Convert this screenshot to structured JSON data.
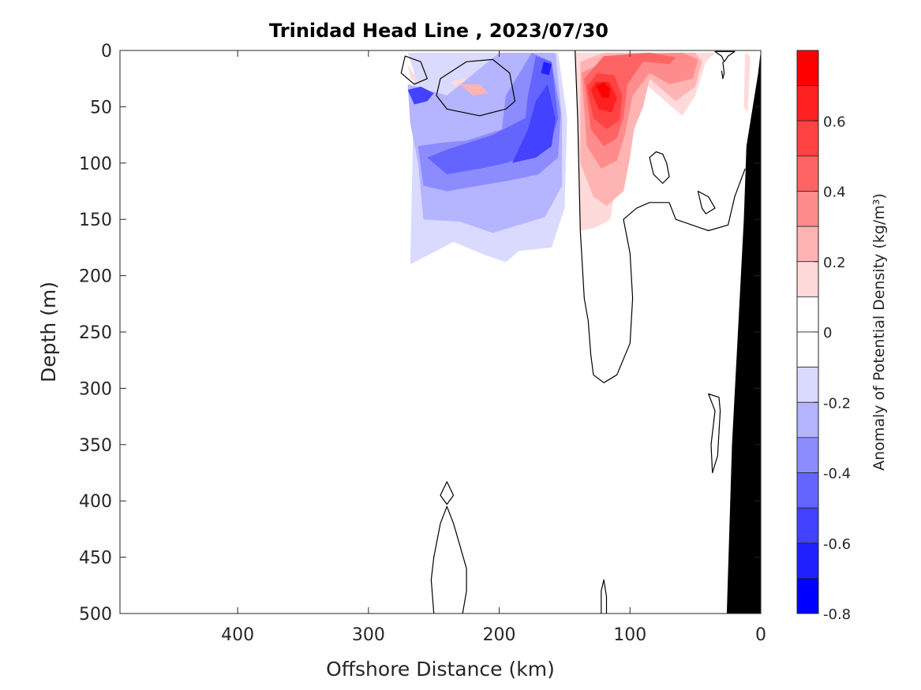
{
  "chart_data": {
    "type": "heatmap",
    "title": "Trinidad Head Line , 2023/07/30",
    "xlabel": "Offshore Distance (km)",
    "ylabel": "Depth (m)",
    "xlim": [
      490,
      0
    ],
    "ylim": [
      0,
      500
    ],
    "x_ticks": [
      {
        "value": 400,
        "label": "400"
      },
      {
        "value": 300,
        "label": "300"
      },
      {
        "value": 200,
        "label": "200"
      },
      {
        "value": 100,
        "label": "100"
      },
      {
        "value": 0,
        "label": "0"
      }
    ],
    "y_ticks": [
      {
        "value": 0,
        "label": "0"
      },
      {
        "value": 50,
        "label": "50"
      },
      {
        "value": 100,
        "label": "100"
      },
      {
        "value": 150,
        "label": "150"
      },
      {
        "value": 200,
        "label": "200"
      },
      {
        "value": 250,
        "label": "250"
      },
      {
        "value": 300,
        "label": "300"
      },
      {
        "value": 350,
        "label": "350"
      },
      {
        "value": 400,
        "label": "400"
      },
      {
        "value": 450,
        "label": "450"
      },
      {
        "value": 500,
        "label": "500"
      }
    ],
    "colorbar": {
      "label": "Anomaly of Potential Density (kg/m³)",
      "clim": [
        -0.8,
        0.8
      ],
      "ticks": [
        {
          "value": 0.6,
          "label": "0.6"
        },
        {
          "value": 0.4,
          "label": "0.4"
        },
        {
          "value": 0.2,
          "label": "0.2"
        },
        {
          "value": 0,
          "label": "0"
        },
        {
          "value": -0.2,
          "label": "-0.2"
        },
        {
          "value": -0.4,
          "label": "-0.4"
        },
        {
          "value": -0.6,
          "label": "-0.6"
        },
        {
          "value": -0.8,
          "label": "-0.8"
        }
      ],
      "levels": [
        {
          "from": 0.7,
          "to": 0.8,
          "color": "#ff0000"
        },
        {
          "from": 0.6,
          "to": 0.7,
          "color": "#ff2020"
        },
        {
          "from": 0.5,
          "to": 0.6,
          "color": "#ff4242"
        },
        {
          "from": 0.4,
          "to": 0.5,
          "color": "#ff6464"
        },
        {
          "from": 0.3,
          "to": 0.4,
          "color": "#ff8c8c"
        },
        {
          "from": 0.2,
          "to": 0.3,
          "color": "#ffb4b4"
        },
        {
          "from": 0.1,
          "to": 0.2,
          "color": "#ffdada"
        },
        {
          "from": 0.0,
          "to": 0.1,
          "color": "#ffffff"
        },
        {
          "from": -0.1,
          "to": 0.0,
          "color": "#ffffff"
        },
        {
          "from": -0.2,
          "to": -0.1,
          "color": "#dadaff"
        },
        {
          "from": -0.3,
          "to": -0.2,
          "color": "#b4b4ff"
        },
        {
          "from": -0.4,
          "to": -0.3,
          "color": "#8c8cff"
        },
        {
          "from": -0.5,
          "to": -0.4,
          "color": "#6464ff"
        },
        {
          "from": -0.6,
          "to": -0.5,
          "color": "#4242ff"
        },
        {
          "from": -0.7,
          "to": -0.6,
          "color": "#2020ff"
        },
        {
          "from": -0.8,
          "to": -0.7,
          "color": "#0000ff"
        }
      ]
    },
    "anomaly_regions": [
      {
        "level": -0.1,
        "points": [
          [
            270,
            2
          ],
          [
            265,
            20
          ],
          [
            268,
            190
          ],
          [
            235,
            170
          ],
          [
            210,
            182
          ],
          [
            195,
            188
          ],
          [
            185,
            178
          ],
          [
            160,
            175
          ],
          [
            150,
            140
          ],
          [
            148,
            60
          ],
          [
            155,
            2
          ]
        ]
      },
      {
        "level": -0.2,
        "points": [
          [
            270,
            30
          ],
          [
            268,
            65
          ],
          [
            262,
            100
          ],
          [
            258,
            150
          ],
          [
            230,
            152
          ],
          [
            205,
            162
          ],
          [
            185,
            155
          ],
          [
            165,
            148
          ],
          [
            152,
            120
          ],
          [
            152,
            60
          ],
          [
            157,
            2
          ],
          [
            200,
            2
          ],
          [
            240,
            40
          ]
        ]
      },
      {
        "level": -0.3,
        "points": [
          [
            262,
            85
          ],
          [
            258,
            120
          ],
          [
            240,
            125
          ],
          [
            215,
            120
          ],
          [
            190,
            115
          ],
          [
            170,
            110
          ],
          [
            155,
            95
          ],
          [
            153,
            55
          ],
          [
            160,
            10
          ],
          [
            175,
            2
          ],
          [
            195,
            40
          ],
          [
            198,
            70
          ],
          [
            225,
            80
          ],
          [
            245,
            82
          ]
        ]
      },
      {
        "level": -0.4,
        "points": [
          [
            255,
            95
          ],
          [
            240,
            110
          ],
          [
            215,
            105
          ],
          [
            195,
            100
          ],
          [
            170,
            90
          ],
          [
            160,
            80
          ],
          [
            155,
            60
          ],
          [
            160,
            10
          ],
          [
            172,
            5
          ],
          [
            178,
            40
          ],
          [
            180,
            60
          ],
          [
            205,
            75
          ],
          [
            240,
            88
          ]
        ]
      },
      {
        "level": -0.5,
        "points": [
          [
            190,
            100
          ],
          [
            172,
            95
          ],
          [
            160,
            85
          ],
          [
            157,
            60
          ],
          [
            163,
            30
          ],
          [
            172,
            45
          ],
          [
            178,
            70
          ]
        ]
      },
      {
        "level": -0.5,
        "points": [
          [
            270,
            35
          ],
          [
            265,
            48
          ],
          [
            255,
            45
          ],
          [
            250,
            38
          ],
          [
            260,
            32
          ]
        ]
      },
      {
        "level": -0.6,
        "points": [
          [
            166,
            10
          ],
          [
            160,
            12
          ],
          [
            162,
            22
          ],
          [
            168,
            20
          ]
        ]
      },
      {
        "level": 0.1,
        "points": [
          [
            142,
            2
          ],
          [
            140,
            60
          ],
          [
            138,
            160
          ],
          [
            128,
            158
          ],
          [
            115,
            150
          ],
          [
            110,
            112
          ],
          [
            100,
            85
          ],
          [
            95,
            55
          ],
          [
            88,
            30
          ],
          [
            60,
            58
          ],
          [
            50,
            40
          ],
          [
            42,
            10
          ],
          [
            35,
            2
          ]
        ]
      },
      {
        "level": 0.1,
        "points": [
          [
            270,
            12
          ],
          [
            268,
            25
          ],
          [
            262,
            28
          ]
        ]
      },
      {
        "level": 0.1,
        "points": [
          [
            237,
            28
          ],
          [
            222,
            45
          ],
          [
            205,
            48
          ],
          [
            193,
            45
          ],
          [
            195,
            32
          ],
          [
            215,
            22
          ]
        ]
      },
      {
        "level": 0.1,
        "points": [
          [
            12,
            2
          ],
          [
            13,
            50
          ],
          [
            10,
            55
          ],
          [
            8,
            5
          ]
        ]
      },
      {
        "level": 0.2,
        "points": [
          [
            138,
            10
          ],
          [
            138,
            100
          ],
          [
            128,
            130
          ],
          [
            118,
            138
          ],
          [
            105,
            125
          ],
          [
            100,
            95
          ],
          [
            97,
            70
          ],
          [
            90,
            50
          ],
          [
            85,
            25
          ],
          [
            65,
            45
          ],
          [
            50,
            32
          ],
          [
            45,
            10
          ],
          [
            50,
            2
          ],
          [
            120,
            2
          ]
        ]
      },
      {
        "level": 0.2,
        "points": [
          [
            230,
            30
          ],
          [
            220,
            40
          ],
          [
            208,
            38
          ],
          [
            215,
            30
          ]
        ]
      },
      {
        "level": 0.3,
        "points": [
          [
            137,
            20
          ],
          [
            133,
            85
          ],
          [
            122,
            105
          ],
          [
            110,
            98
          ],
          [
            104,
            75
          ],
          [
            98,
            40
          ],
          [
            85,
            20
          ],
          [
            70,
            30
          ],
          [
            52,
            25
          ],
          [
            48,
            8
          ],
          [
            60,
            2
          ],
          [
            110,
            4
          ]
        ]
      },
      {
        "level": 0.4,
        "points": [
          [
            135,
            25
          ],
          [
            130,
            70
          ],
          [
            120,
            85
          ],
          [
            110,
            78
          ],
          [
            105,
            60
          ],
          [
            102,
            30
          ],
          [
            90,
            10
          ],
          [
            70,
            12
          ],
          [
            65,
            6
          ],
          [
            85,
            2
          ],
          [
            120,
            5
          ]
        ]
      },
      {
        "level": 0.5,
        "points": [
          [
            133,
            32
          ],
          [
            128,
            60
          ],
          [
            118,
            70
          ],
          [
            108,
            62
          ],
          [
            106,
            40
          ],
          [
            112,
            22
          ],
          [
            125,
            20
          ]
        ]
      },
      {
        "level": 0.6,
        "points": [
          [
            130,
            35
          ],
          [
            124,
            52
          ],
          [
            114,
            55
          ],
          [
            110,
            42
          ],
          [
            116,
            28
          ],
          [
            126,
            28
          ]
        ]
      },
      {
        "level": 0.7,
        "points": [
          [
            126,
            32
          ],
          [
            121,
            42
          ],
          [
            116,
            42
          ],
          [
            115,
            34
          ],
          [
            120,
            28
          ]
        ]
      }
    ],
    "zero_contours": [
      {
        "closed": false,
        "points": [
          [
            142,
            0
          ],
          [
            140,
            60
          ],
          [
            138,
            160
          ],
          [
            135,
            220
          ],
          [
            132,
            240
          ],
          [
            130,
            270
          ],
          [
            128,
            288
          ],
          [
            120,
            295
          ],
          [
            110,
            288
          ],
          [
            100,
            260
          ],
          [
            98,
            220
          ],
          [
            100,
            180
          ],
          [
            105,
            150
          ],
          [
            95,
            140
          ],
          [
            85,
            135
          ],
          [
            70,
            135
          ],
          [
            65,
            150
          ],
          [
            40,
            160
          ],
          [
            25,
            155
          ],
          [
            20,
            130
          ],
          [
            12,
            105
          ]
        ]
      },
      {
        "closed": true,
        "points": [
          [
            245,
            25
          ],
          [
            225,
            10
          ],
          [
            205,
            8
          ],
          [
            192,
            20
          ],
          [
            188,
            45
          ],
          [
            195,
            52
          ],
          [
            215,
            58
          ],
          [
            240,
            52
          ],
          [
            248,
            40
          ]
        ]
      },
      {
        "closed": true,
        "points": [
          [
            272,
            5
          ],
          [
            260,
            10
          ],
          [
            255,
            25
          ],
          [
            265,
            30
          ],
          [
            275,
            20
          ]
        ]
      },
      {
        "closed": true,
        "points": [
          [
            35,
            1
          ],
          [
            30,
            5
          ],
          [
            28,
            10
          ],
          [
            25,
            5
          ],
          [
            20,
            1
          ]
        ]
      },
      {
        "closed": false,
        "points": [
          [
            29,
            10
          ],
          [
            28,
            20
          ],
          [
            29,
            25
          ],
          [
            30,
            18
          ]
        ]
      },
      {
        "closed": true,
        "points": [
          [
            80,
            90
          ],
          [
            85,
            95
          ],
          [
            82,
            110
          ],
          [
            75,
            118
          ],
          [
            70,
            112
          ],
          [
            72,
            100
          ],
          [
            75,
            92
          ]
        ]
      },
      {
        "closed": true,
        "points": [
          [
            48,
            125
          ],
          [
            45,
            140
          ],
          [
            42,
            145
          ],
          [
            35,
            140
          ],
          [
            40,
            130
          ]
        ]
      },
      {
        "closed": true,
        "points": [
          [
            40,
            305
          ],
          [
            35,
            320
          ],
          [
            38,
            350
          ],
          [
            37,
            375
          ],
          [
            33,
            360
          ],
          [
            31,
            320
          ],
          [
            32,
            308
          ]
        ]
      },
      {
        "closed": false,
        "points": [
          [
            250,
            500
          ],
          [
            252,
            470
          ],
          [
            250,
            450
          ],
          [
            245,
            420
          ],
          [
            240,
            405
          ],
          [
            235,
            420
          ],
          [
            230,
            440
          ],
          [
            225,
            460
          ],
          [
            225,
            480
          ],
          [
            228,
            500
          ]
        ]
      },
      {
        "closed": true,
        "points": [
          [
            240,
            383
          ],
          [
            245,
            395
          ],
          [
            240,
            403
          ],
          [
            235,
            395
          ]
        ]
      },
      {
        "closed": false,
        "points": [
          [
            122,
            500
          ],
          [
            122,
            480
          ],
          [
            120,
            470
          ],
          [
            118,
            485
          ],
          [
            118,
            500
          ]
        ]
      }
    ],
    "bathymetry": {
      "color": "#000000",
      "points": [
        [
          0,
          0
        ],
        [
          0,
          500
        ],
        [
          26,
          500
        ],
        [
          22,
          350
        ],
        [
          17,
          240
        ],
        [
          13,
          150
        ],
        [
          11,
          85
        ],
        [
          2,
          20
        ]
      ]
    }
  }
}
